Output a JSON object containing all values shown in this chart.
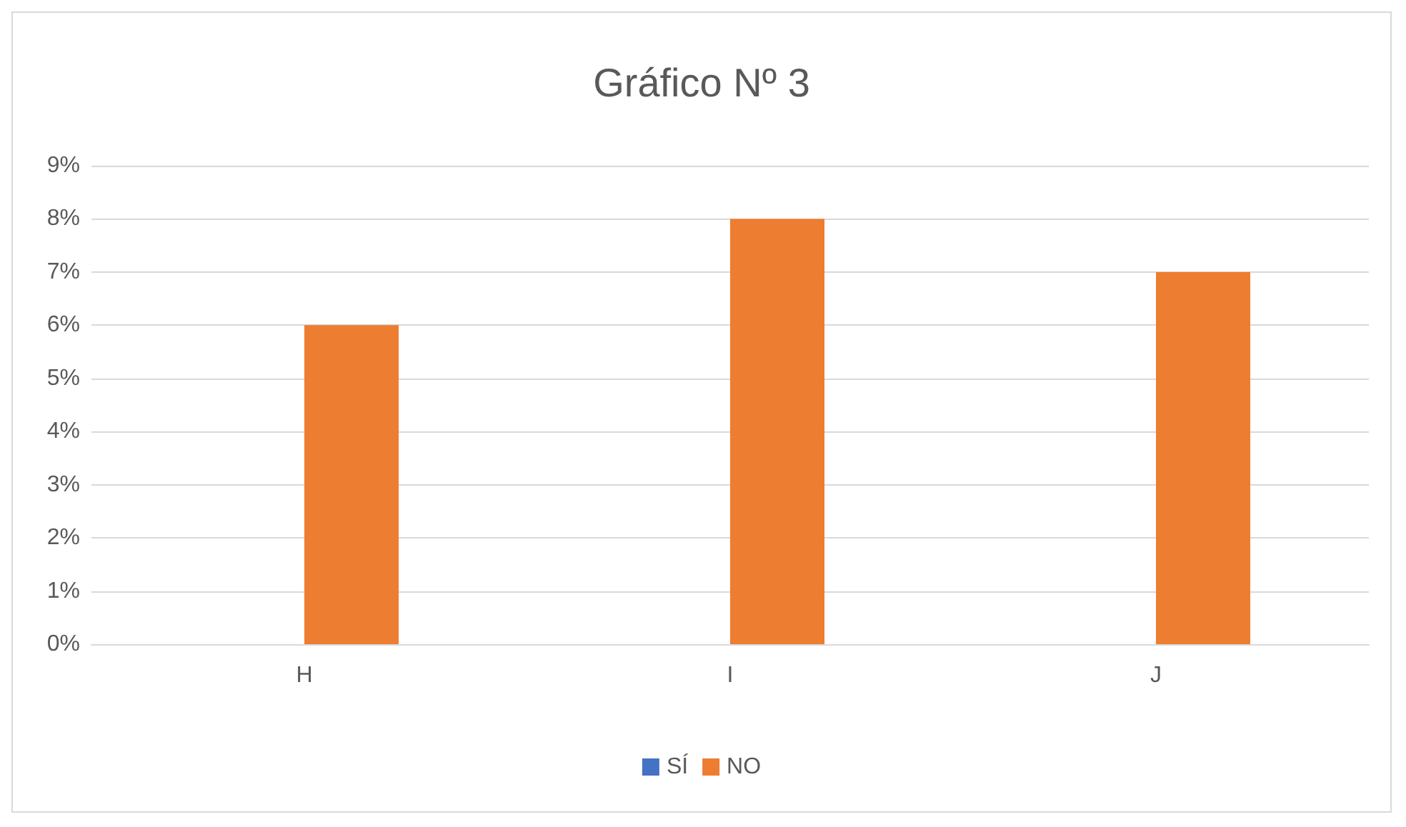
{
  "chart_data": {
    "type": "bar",
    "title": "Gráfico Nº 3",
    "categories": [
      "H",
      "I",
      "J"
    ],
    "series": [
      {
        "name": "SÍ",
        "color": "#4472c4",
        "values": [
          0,
          0,
          0
        ]
      },
      {
        "name": "NO",
        "color": "#ed7d31",
        "values": [
          6,
          8,
          7
        ]
      }
    ],
    "ylim": [
      0,
      9
    ],
    "yticks": [
      {
        "value": 0,
        "label": "0%"
      },
      {
        "value": 1,
        "label": "1%"
      },
      {
        "value": 2,
        "label": "2%"
      },
      {
        "value": 3,
        "label": "3%"
      },
      {
        "value": 4,
        "label": "4%"
      },
      {
        "value": 5,
        "label": "5%"
      },
      {
        "value": 6,
        "label": "6%"
      },
      {
        "value": 7,
        "label": "7%"
      },
      {
        "value": 8,
        "label": "8%"
      },
      {
        "value": 9,
        "label": "9%"
      }
    ],
    "grid": true,
    "legend": "bottom"
  }
}
